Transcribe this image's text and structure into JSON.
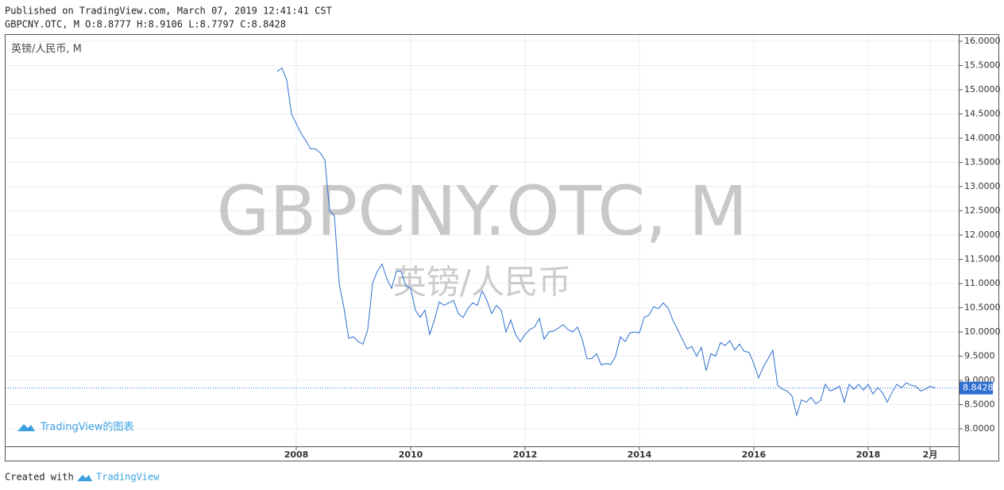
{
  "header": {
    "published": "Published on TradingView.com, March 07, 2019 12:41:41 CST",
    "ohlc": "GBPCNY.OTC, M O:8.8777 H:8.9106 L:8.7797 C:8.8428"
  },
  "footer": {
    "created": "Created with",
    "brand": "TradingView"
  },
  "chart_data": {
    "type": "line",
    "watermark": "GBPCNY.OTC, M",
    "watermark_subtitle": "英镑/人民币",
    "logo_text": "TradingView的图表",
    "x": [
      "2007-09",
      "2007-10",
      "2007-11",
      "2007-12",
      "2008-01",
      "2008-02",
      "2008-03",
      "2008-04",
      "2008-05",
      "2008-06",
      "2008-07",
      "2008-08",
      "2008-09",
      "2008-10",
      "2008-11",
      "2008-12",
      "2009-01",
      "2009-02",
      "2009-03",
      "2009-04",
      "2009-05",
      "2009-06",
      "2009-07",
      "2009-08",
      "2009-09",
      "2009-10",
      "2009-11",
      "2009-12",
      "2010-01",
      "2010-02",
      "2010-03",
      "2010-04",
      "2010-05",
      "2010-06",
      "2010-07",
      "2010-08",
      "2010-09",
      "2010-10",
      "2010-11",
      "2010-12",
      "2011-01",
      "2011-02",
      "2011-03",
      "2011-04",
      "2011-05",
      "2011-06",
      "2011-07",
      "2011-08",
      "2011-09",
      "2011-10",
      "2011-11",
      "2011-12",
      "2012-01",
      "2012-02",
      "2012-03",
      "2012-04",
      "2012-05",
      "2012-06",
      "2012-07",
      "2012-08",
      "2012-09",
      "2012-10",
      "2012-11",
      "2012-12",
      "2013-01",
      "2013-02",
      "2013-03",
      "2013-04",
      "2013-05",
      "2013-06",
      "2013-07",
      "2013-08",
      "2013-09",
      "2013-10",
      "2013-11",
      "2013-12",
      "2014-01",
      "2014-02",
      "2014-03",
      "2014-04",
      "2014-05",
      "2014-06",
      "2014-07",
      "2014-08",
      "2014-09",
      "2014-10",
      "2014-11",
      "2014-12",
      "2015-01",
      "2015-02",
      "2015-03",
      "2015-04",
      "2015-05",
      "2015-06",
      "2015-07",
      "2015-08",
      "2015-09",
      "2015-10",
      "2015-11",
      "2015-12",
      "2016-01",
      "2016-02",
      "2016-03",
      "2016-04",
      "2016-05",
      "2016-06",
      "2016-07",
      "2016-08",
      "2016-09",
      "2016-10",
      "2016-11",
      "2016-12",
      "2017-01",
      "2017-02",
      "2017-03",
      "2017-04",
      "2017-05",
      "2017-06",
      "2017-07",
      "2017-08",
      "2017-09",
      "2017-10",
      "2017-11",
      "2017-12",
      "2018-01",
      "2018-02",
      "2018-03",
      "2018-04",
      "2018-05",
      "2018-06",
      "2018-07",
      "2018-08",
      "2018-09",
      "2018-10",
      "2018-11",
      "2018-12",
      "2019-01",
      "2019-02",
      "2019-03"
    ],
    "series": [
      {
        "name": "英镑/人民币, M",
        "color": "#2e6fcf",
        "values": [
          15.38,
          15.45,
          15.2,
          14.5,
          14.3,
          14.1,
          13.95,
          13.78,
          13.78,
          13.7,
          13.55,
          12.5,
          12.4,
          11.0,
          10.5,
          9.87,
          9.9,
          9.8,
          9.75,
          10.05,
          11.0,
          11.25,
          11.4,
          11.1,
          10.9,
          11.25,
          11.25,
          10.95,
          10.9,
          10.45,
          10.3,
          10.45,
          9.95,
          10.25,
          10.62,
          10.55,
          10.6,
          10.65,
          10.38,
          10.3,
          10.48,
          10.6,
          10.55,
          10.85,
          10.65,
          10.38,
          10.55,
          10.45,
          10.0,
          10.25,
          9.95,
          9.8,
          9.95,
          10.05,
          10.1,
          10.28,
          9.85,
          10.0,
          10.02,
          10.08,
          10.15,
          10.05,
          10.0,
          10.1,
          9.85,
          9.45,
          9.45,
          9.55,
          9.32,
          9.35,
          9.33,
          9.5,
          9.9,
          9.8,
          9.98,
          10.0,
          9.98,
          10.3,
          10.35,
          10.52,
          10.48,
          10.6,
          10.5,
          10.25,
          10.05,
          9.85,
          9.65,
          9.7,
          9.5,
          9.68,
          9.2,
          9.55,
          9.5,
          9.78,
          9.72,
          9.82,
          9.63,
          9.75,
          9.6,
          9.58,
          9.35,
          9.05,
          9.28,
          9.45,
          9.62,
          8.9,
          8.82,
          8.78,
          8.68,
          8.28,
          8.6,
          8.55,
          8.65,
          8.52,
          8.58,
          8.92,
          8.78,
          8.82,
          8.88,
          8.55,
          8.92,
          8.82,
          8.92,
          8.8,
          8.92,
          8.72,
          8.85,
          8.75,
          8.55,
          8.75,
          8.92,
          8.85,
          8.95,
          8.9,
          8.88,
          8.78,
          8.82,
          8.88,
          8.8428
        ]
      }
    ],
    "last_price": 8.8428,
    "xlim": [
      "2002-12",
      "2019-08"
    ],
    "xticks": [
      {
        "value": "2008-01",
        "label": "2008"
      },
      {
        "value": "2010-01",
        "label": "2010"
      },
      {
        "value": "2012-01",
        "label": "2012"
      },
      {
        "value": "2014-01",
        "label": "2014"
      },
      {
        "value": "2016-01",
        "label": "2016"
      },
      {
        "value": "2018-01",
        "label": "2018"
      },
      {
        "value": "2019-02",
        "label": "2月"
      }
    ],
    "ylim": [
      8.0,
      16.0
    ],
    "yticks": [
      {
        "value": 8.0,
        "label": "8.0000"
      },
      {
        "value": 8.5,
        "label": "8.5000"
      },
      {
        "value": 9.0,
        "label": "9.0000"
      },
      {
        "value": 9.5,
        "label": "9.5000"
      },
      {
        "value": 10.0,
        "label": "10.0000"
      },
      {
        "value": 10.5,
        "label": "10.5000"
      },
      {
        "value": 11.0,
        "label": "11.0000"
      },
      {
        "value": 11.5,
        "label": "11.5000"
      },
      {
        "value": 12.0,
        "label": "12.0000"
      },
      {
        "value": 12.5,
        "label": "12.5000"
      },
      {
        "value": 13.0,
        "label": "13.0000"
      },
      {
        "value": 13.5,
        "label": "13.5000"
      },
      {
        "value": 14.0,
        "label": "14.0000"
      },
      {
        "value": 14.5,
        "label": "14.5000"
      },
      {
        "value": 15.0,
        "label": "15.0000"
      },
      {
        "value": 15.5,
        "label": "15.5000"
      },
      {
        "value": 16.0,
        "label": "16.0000"
      }
    ],
    "grid": true
  }
}
